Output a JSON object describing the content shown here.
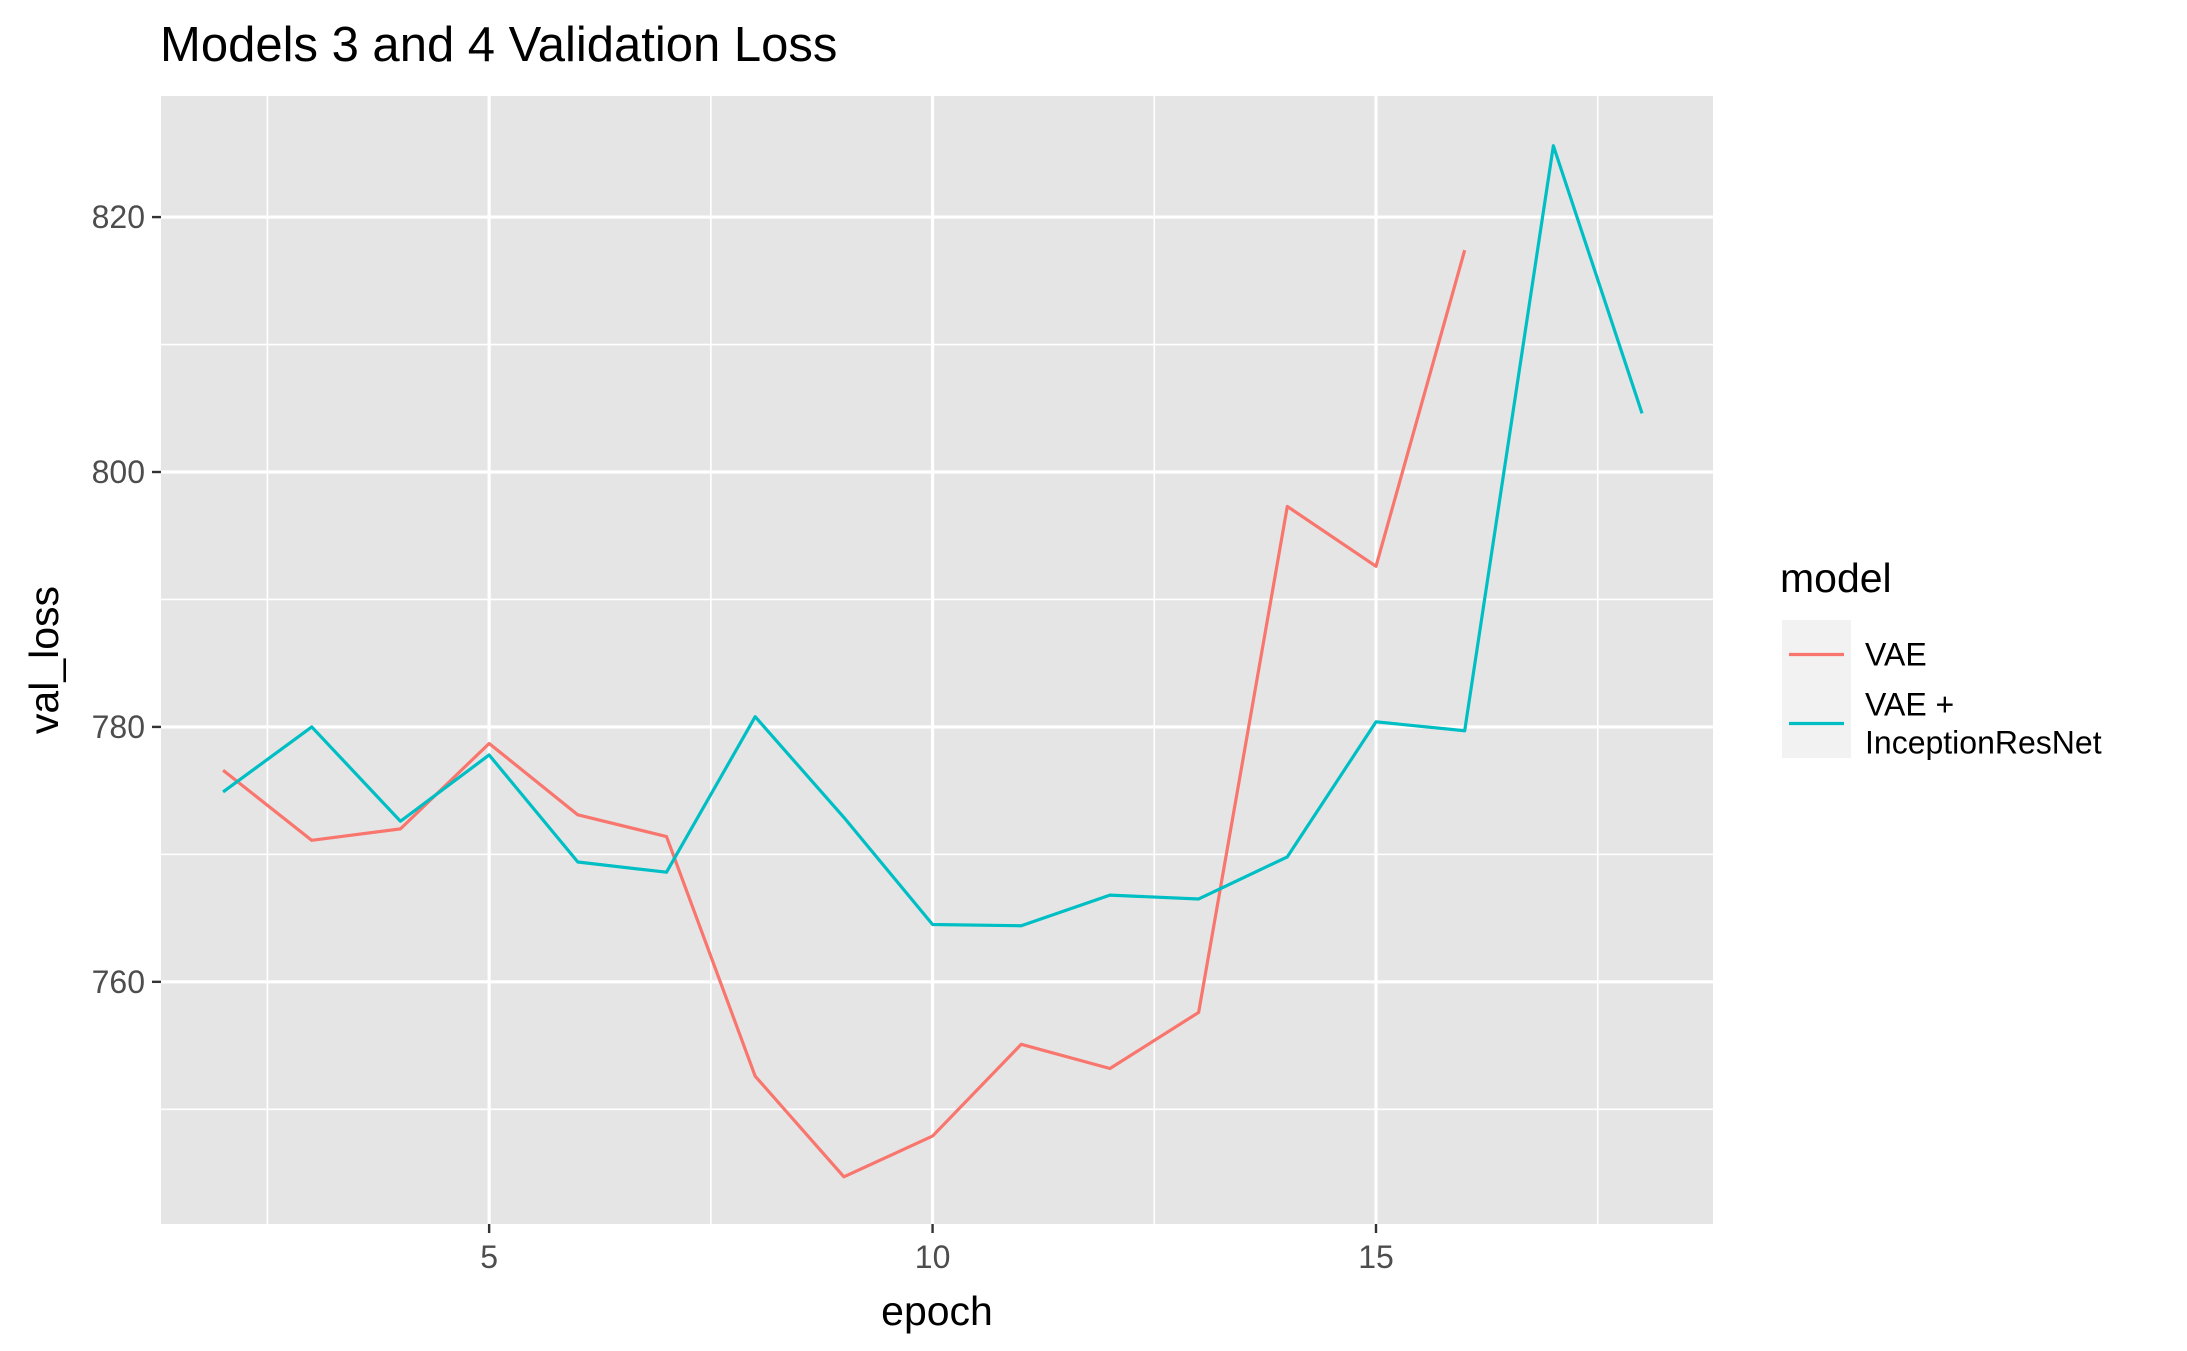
{
  "chart_data": {
    "type": "line",
    "title": "Models 3 and 4 Validation Loss",
    "xlabel": "epoch",
    "ylabel": "val_loss",
    "xlim": [
      1.3,
      18.8
    ],
    "ylim": [
      741,
      829.5
    ],
    "x_ticks": [
      5,
      10,
      15
    ],
    "x_minor": [
      2.5,
      7.5,
      12.5,
      17.5
    ],
    "y_ticks": [
      760,
      780,
      800,
      820
    ],
    "y_minor": [
      750,
      770,
      790,
      810
    ],
    "grid": true,
    "legend": {
      "title": "model",
      "placement": "right",
      "entries": [
        {
          "label_lines": [
            "VAE"
          ],
          "color": "#F8766D"
        },
        {
          "label_lines": [
            "VAE +",
            "InceptionResNet"
          ],
          "color": "#00BFC4"
        }
      ]
    },
    "series": [
      {
        "name": "VAE",
        "color": "#F8766D",
        "x": [
          2,
          3,
          4,
          5,
          6,
          7,
          8,
          9,
          10,
          11,
          12,
          13,
          14,
          15,
          16
        ],
        "y": [
          776.6,
          771.1,
          772.0,
          778.7,
          773.1,
          771.4,
          752.6,
          744.7,
          747.9,
          755.1,
          753.2,
          757.6,
          797.3,
          792.6,
          817.4
        ]
      },
      {
        "name": "VAE + InceptionResNet",
        "color": "#00BFC4",
        "x": [
          2,
          3,
          4,
          5,
          6,
          7,
          8,
          9,
          10,
          11,
          12,
          13,
          14,
          15,
          16,
          17,
          18
        ],
        "y": [
          774.9,
          780.0,
          772.6,
          777.8,
          769.4,
          768.6,
          780.8,
          772.9,
          764.5,
          764.4,
          766.8,
          766.5,
          769.8,
          780.4,
          779.7,
          825.6,
          804.6
        ]
      }
    ]
  }
}
